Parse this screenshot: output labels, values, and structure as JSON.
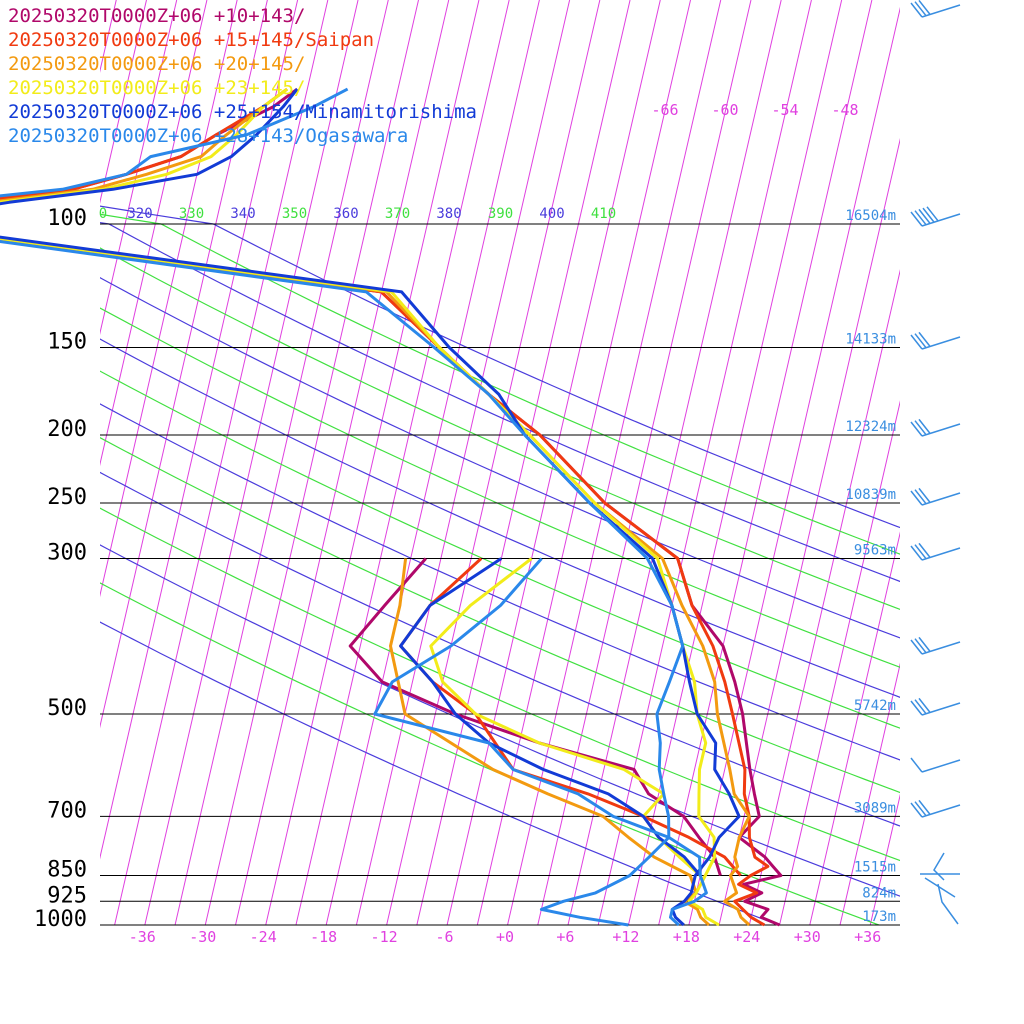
{
  "chart_data": {
    "type": "skew-t",
    "pressure_levels": [
      {
        "p": 100,
        "label": "100",
        "height_label": "16504m"
      },
      {
        "p": 150,
        "label": "150",
        "height_label": "14133m"
      },
      {
        "p": 200,
        "label": "200",
        "height_label": "12324m"
      },
      {
        "p": 250,
        "label": "250",
        "height_label": "10839m"
      },
      {
        "p": 300,
        "label": "300",
        "height_label": "9563m"
      },
      {
        "p": 500,
        "label": "500",
        "height_label": "5742m"
      },
      {
        "p": 700,
        "label": "700",
        "height_label": "3089m"
      },
      {
        "p": 850,
        "label": "850",
        "height_label": "1515m"
      },
      {
        "p": 925,
        "label": "925",
        "height_label": "824m"
      },
      {
        "p": 1000,
        "label": "1000",
        "height_label": "173m"
      }
    ],
    "x_ticks": [
      "-36",
      "-30",
      "-24",
      "-18",
      "-12",
      "-6",
      "+0",
      "+6",
      "+12",
      "+18",
      "+24",
      "+30",
      "+36"
    ],
    "x_tick_values": [
      -36,
      -30,
      -24,
      -18,
      -12,
      -6,
      0,
      6,
      12,
      18,
      24,
      30,
      36
    ],
    "top_temp_labels": [
      "-66",
      "-60",
      "-54",
      "-48"
    ],
    "theta_labels": [
      {
        "text": "0",
        "color": "green"
      },
      {
        "text": "320",
        "color": "blue"
      },
      {
        "text": "330",
        "color": "green"
      },
      {
        "text": "340",
        "color": "blue"
      },
      {
        "text": "350",
        "color": "green"
      },
      {
        "text": "360",
        "color": "blue"
      },
      {
        "text": "370",
        "color": "green"
      },
      {
        "text": "380",
        "color": "blue"
      },
      {
        "text": "390",
        "color": "green"
      },
      {
        "text": "400",
        "color": "blue"
      },
      {
        "text": "410",
        "color": "green"
      }
    ],
    "colors": {
      "isotherm": "#e040e0",
      "theta_blue": "#4a3cdc",
      "theta_green": "#40e040",
      "isobar": "#000000",
      "height_label": "#3a8ee0",
      "wind_barb": "#3a8ee0"
    },
    "series": [
      {
        "name": "20250320T0000Z+06 +10+143/",
        "color": "#b0086a",
        "temperature": [
          [
            1000,
            27
          ],
          [
            975,
            25
          ],
          [
            950,
            25.5
          ],
          [
            925,
            23
          ],
          [
            900,
            24.5
          ],
          [
            875,
            22.5
          ],
          [
            850,
            26
          ],
          [
            825,
            25
          ],
          [
            800,
            24
          ],
          [
            750,
            21
          ],
          [
            700,
            22.5
          ],
          [
            650,
            21.5
          ],
          [
            600,
            20.5
          ],
          [
            500,
            18.5
          ],
          [
            450,
            17
          ],
          [
            400,
            15
          ],
          [
            350,
            11
          ],
          [
            300,
            8.5
          ],
          [
            250,
            0
          ],
          [
            200,
            -8
          ],
          [
            175,
            -14
          ],
          [
            150,
            -20
          ],
          [
            125,
            -27
          ],
          [
            100,
            -77.5
          ],
          [
            90,
            -75
          ],
          [
            80,
            -70
          ],
          [
            70,
            -60
          ],
          [
            60,
            -55
          ],
          [
            50,
            -50
          ],
          [
            40,
            -47
          ],
          [
            30,
            -42
          ],
          [
            25,
            -40
          ]
        ],
        "dewpoint": [
          [
            850,
            20
          ],
          [
            800,
            19
          ],
          [
            750,
            17
          ],
          [
            700,
            15
          ],
          [
            650,
            11
          ],
          [
            600,
            9
          ],
          [
            550,
            -1
          ],
          [
            500,
            -10
          ],
          [
            450,
            -18
          ],
          [
            400,
            -22
          ],
          [
            350,
            -19.5
          ],
          [
            300,
            -16.5
          ]
        ]
      },
      {
        "name": "20250320T0000Z+06 +15+145/Saipan",
        "color": "#f03a10",
        "temperature": [
          [
            1000,
            25.5
          ],
          [
            975,
            24
          ],
          [
            950,
            23
          ],
          [
            925,
            22
          ],
          [
            900,
            24
          ],
          [
            875,
            22
          ],
          [
            850,
            23
          ],
          [
            825,
            24.5
          ],
          [
            800,
            23
          ],
          [
            750,
            22
          ],
          [
            700,
            21.5
          ],
          [
            650,
            20.5
          ],
          [
            600,
            20
          ],
          [
            500,
            17.5
          ],
          [
            450,
            16
          ],
          [
            400,
            14
          ],
          [
            350,
            11
          ],
          [
            300,
            8.5
          ],
          [
            250,
            0
          ],
          [
            200,
            -8
          ],
          [
            175,
            -14
          ],
          [
            150,
            -20
          ],
          [
            125,
            -27
          ],
          [
            100,
            -78
          ],
          [
            90,
            -75
          ],
          [
            80,
            -70
          ],
          [
            70,
            -60
          ],
          [
            60,
            -55
          ],
          [
            50,
            -50
          ],
          [
            40,
            -47
          ],
          [
            30,
            -43
          ],
          [
            25,
            -41
          ]
        ],
        "dewpoint": [
          [
            850,
            22
          ],
          [
            800,
            20
          ],
          [
            750,
            16
          ],
          [
            700,
            11
          ],
          [
            650,
            5
          ],
          [
            600,
            -3
          ],
          [
            500,
            -8
          ],
          [
            450,
            -13
          ],
          [
            400,
            -17
          ],
          [
            350,
            -15
          ],
          [
            300,
            -11
          ]
        ]
      },
      {
        "name": "20250320T0000Z+06 +20+145/",
        "color": "#f39a10",
        "temperature": [
          [
            1000,
            24
          ],
          [
            975,
            23
          ],
          [
            950,
            22.5
          ],
          [
            925,
            21
          ],
          [
            900,
            22
          ],
          [
            850,
            21
          ],
          [
            825,
            21.5
          ],
          [
            800,
            21
          ],
          [
            750,
            21
          ],
          [
            700,
            21.5
          ],
          [
            650,
            19.5
          ],
          [
            600,
            18.5
          ],
          [
            500,
            16
          ],
          [
            450,
            15
          ],
          [
            400,
            13
          ],
          [
            350,
            10
          ],
          [
            300,
            7
          ],
          [
            250,
            -1
          ],
          [
            200,
            -9
          ],
          [
            175,
            -14
          ],
          [
            150,
            -20
          ],
          [
            125,
            -26.5
          ],
          [
            100,
            -77
          ],
          [
            90,
            -74
          ],
          [
            80,
            -68
          ],
          [
            70,
            -58
          ],
          [
            60,
            -53
          ],
          [
            50,
            -48
          ],
          [
            40,
            -46
          ],
          [
            30,
            -43
          ],
          [
            25,
            -41
          ]
        ],
        "dewpoint": [
          [
            1000,
            20
          ],
          [
            975,
            19
          ],
          [
            950,
            18.5
          ],
          [
            925,
            17
          ],
          [
            900,
            18
          ],
          [
            850,
            17
          ],
          [
            800,
            13
          ],
          [
            750,
            10
          ],
          [
            700,
            7
          ],
          [
            650,
            1
          ],
          [
            600,
            -5
          ],
          [
            500,
            -15
          ],
          [
            400,
            -18
          ],
          [
            350,
            -18
          ],
          [
            300,
            -18.5
          ]
        ]
      },
      {
        "name": "20250320T0000Z+06 +23+145/",
        "color": "#f2ec1a",
        "temperature": [
          [
            1000,
            21
          ],
          [
            975,
            19.5
          ],
          [
            950,
            19
          ],
          [
            925,
            17.5
          ],
          [
            900,
            18
          ],
          [
            850,
            18.5
          ],
          [
            800,
            19
          ],
          [
            750,
            18.5
          ],
          [
            700,
            16.5
          ],
          [
            650,
            16
          ],
          [
            600,
            15.5
          ],
          [
            550,
            15.5
          ],
          [
            500,
            14
          ],
          [
            450,
            13
          ],
          [
            400,
            11
          ],
          [
            350,
            9
          ],
          [
            300,
            6.5
          ],
          [
            250,
            -1
          ],
          [
            200,
            -9
          ],
          [
            175,
            -14
          ],
          [
            150,
            -20
          ],
          [
            125,
            -26
          ],
          [
            100,
            -77
          ],
          [
            90,
            -74
          ],
          [
            80,
            -67
          ],
          [
            70,
            -57
          ],
          [
            60,
            -51
          ],
          [
            50,
            -47
          ],
          [
            40,
            -45
          ],
          [
            30,
            -43
          ],
          [
            25,
            -41
          ]
        ],
        "dewpoint": [
          [
            850,
            18
          ],
          [
            800,
            15.5
          ],
          [
            750,
            13
          ],
          [
            700,
            11
          ],
          [
            650,
            12.5
          ],
          [
            600,
            8
          ],
          [
            550,
            -1
          ],
          [
            500,
            -8
          ],
          [
            450,
            -12
          ],
          [
            400,
            -14
          ],
          [
            350,
            -11
          ],
          [
            300,
            -6
          ]
        ]
      },
      {
        "name": "20250320T0000Z+06 +25+154/Minamitorishima",
        "color": "#123bd6",
        "temperature": [
          [
            1000,
            17.5
          ],
          [
            975,
            16.5
          ],
          [
            950,
            16
          ],
          [
            925,
            17
          ],
          [
            900,
            17.5
          ],
          [
            850,
            17.5
          ],
          [
            800,
            18.5
          ],
          [
            750,
            19
          ],
          [
            700,
            20.5
          ],
          [
            650,
            19
          ],
          [
            600,
            17
          ],
          [
            550,
            16.5
          ],
          [
            500,
            14
          ],
          [
            450,
            12.5
          ],
          [
            400,
            11
          ],
          [
            350,
            9
          ],
          [
            300,
            6
          ],
          [
            250,
            -1.5
          ],
          [
            200,
            -9.5
          ],
          [
            175,
            -13
          ],
          [
            150,
            -19
          ],
          [
            125,
            -25
          ],
          [
            100,
            -76
          ],
          [
            90,
            -73
          ],
          [
            80,
            -66
          ],
          [
            70,
            -56
          ],
          [
            60,
            -48
          ],
          [
            50,
            -45
          ],
          [
            40,
            -43
          ],
          [
            30,
            -41
          ],
          [
            25,
            -40
          ]
        ],
        "dewpoint": [
          [
            850,
            18
          ],
          [
            800,
            16
          ],
          [
            750,
            13
          ],
          [
            700,
            11
          ],
          [
            650,
            7
          ],
          [
            600,
            0
          ],
          [
            550,
            -6
          ],
          [
            500,
            -10
          ],
          [
            450,
            -13
          ],
          [
            400,
            -17
          ],
          [
            350,
            -15
          ],
          [
            300,
            -9
          ]
        ]
      },
      {
        "name": "20250320T0000Z+06 +28+143/Ogasawara",
        "color": "#2a88ea",
        "temperature": [
          [
            1000,
            17
          ],
          [
            975,
            16
          ],
          [
            950,
            16
          ],
          [
            925,
            18
          ],
          [
            900,
            19
          ],
          [
            850,
            18
          ],
          [
            800,
            17.5
          ],
          [
            750,
            14
          ],
          [
            700,
            13.5
          ],
          [
            650,
            12.5
          ],
          [
            600,
            11.5
          ],
          [
            550,
            11
          ],
          [
            500,
            10
          ],
          [
            450,
            10.5
          ],
          [
            400,
            11
          ],
          [
            350,
            9
          ],
          [
            300,
            5.5
          ],
          [
            250,
            -1.5
          ],
          [
            200,
            -9.5
          ],
          [
            175,
            -14
          ],
          [
            150,
            -20.5
          ],
          [
            125,
            -28.5
          ],
          [
            100,
            -79
          ],
          [
            90,
            -79
          ],
          [
            80,
            -73
          ],
          [
            70,
            -61
          ],
          [
            60,
            -55
          ],
          [
            50,
            -53
          ],
          [
            40,
            -44
          ],
          [
            30,
            -38
          ],
          [
            25,
            -35
          ]
        ],
        "dewpoint": [
          [
            1000,
            12
          ],
          [
            975,
            7
          ],
          [
            950,
            3
          ],
          [
            925,
            5
          ],
          [
            900,
            8
          ],
          [
            850,
            11
          ],
          [
            800,
            12.5
          ],
          [
            750,
            14
          ],
          [
            700,
            8
          ],
          [
            650,
            4
          ],
          [
            600,
            -3
          ],
          [
            550,
            -6
          ],
          [
            500,
            -18
          ],
          [
            450,
            -17
          ],
          [
            400,
            -12
          ],
          [
            350,
            -8
          ],
          [
            300,
            -5
          ]
        ]
      }
    ]
  }
}
